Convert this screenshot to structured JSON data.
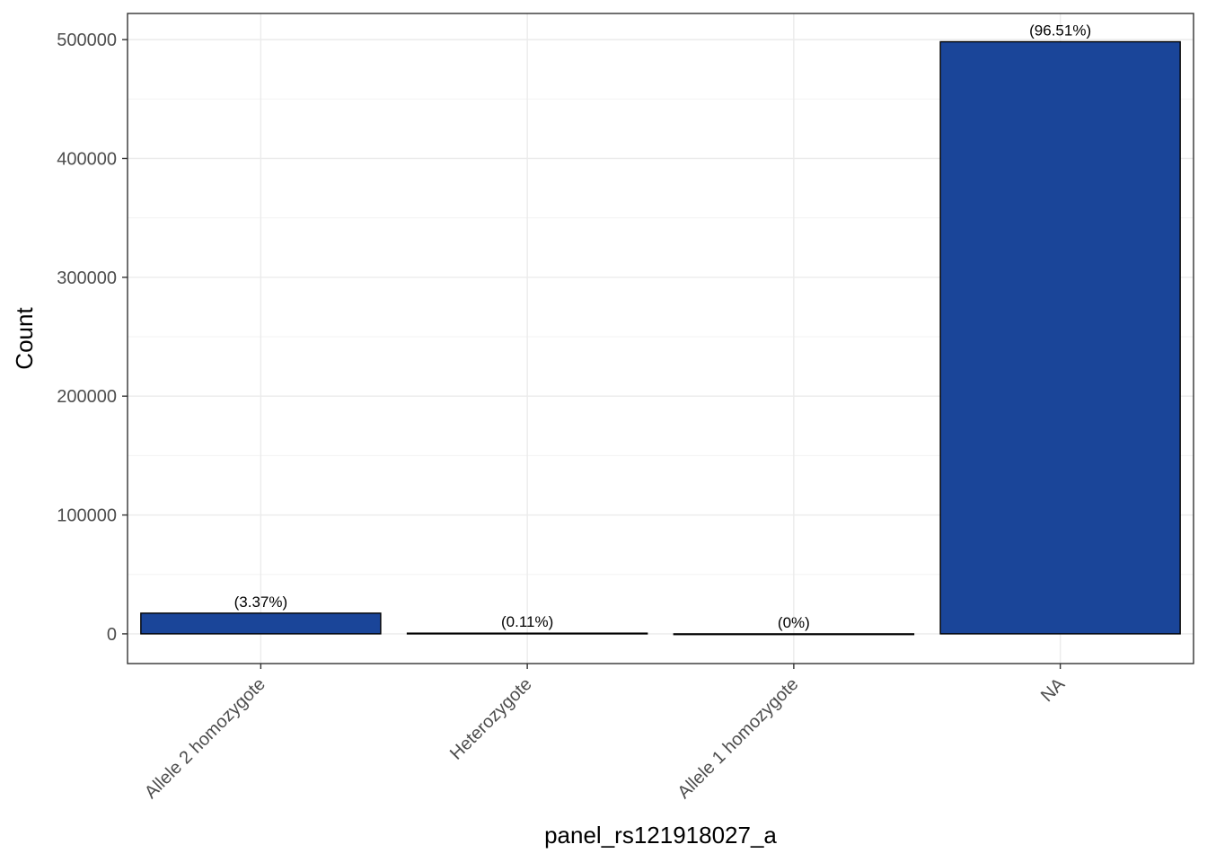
{
  "chart_data": {
    "type": "bar",
    "categories": [
      "Allele 2 homozygote",
      "Heterozygote",
      "Allele 1 homozygote",
      "NA"
    ],
    "values": [
      17400,
      570,
      5,
      498200
    ],
    "data_labels": [
      "(3.37%)",
      "(0.11%)",
      "(0%)",
      "(96.51%)"
    ],
    "xlabel": "panel_rs121918027_a",
    "ylabel": "Count",
    "ylim": [
      -25000,
      522000
    ],
    "yticks": [
      0,
      100000,
      200000,
      300000,
      400000,
      500000
    ],
    "ytick_labels": [
      "0",
      "100000",
      "200000",
      "300000",
      "400000",
      "500000"
    ],
    "grid": true,
    "legend": "none",
    "colors": {
      "bar_fill": "#1a4599",
      "bar_stroke": "#000000",
      "grid_major": "#ebebeb",
      "grid_minor": "#f3f3f3",
      "panel_border": "#333333"
    }
  }
}
